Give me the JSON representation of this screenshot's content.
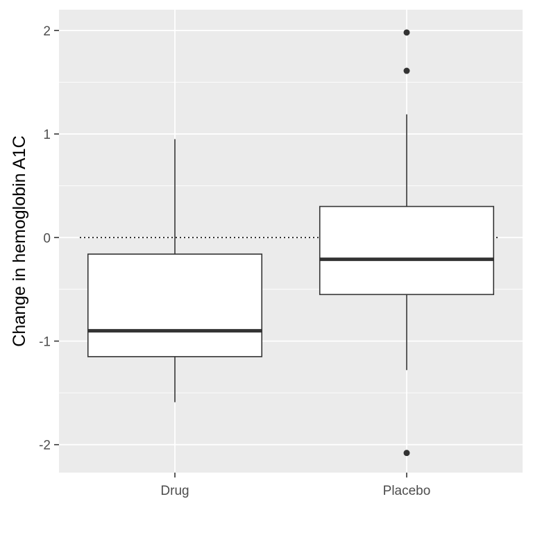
{
  "chart_data": {
    "type": "boxplot",
    "title": "",
    "xlabel": "",
    "ylabel": "Change in hemoglobin A1C",
    "categories": [
      "Drug",
      "Placebo"
    ],
    "ylim": [
      -2.27,
      2.2
    ],
    "y_ticks": [
      2,
      1,
      0,
      -1,
      -2
    ],
    "y_tick_labels": [
      "2",
      "1",
      "0",
      "-1",
      "-2"
    ],
    "grid": true,
    "reference_line": {
      "y": 0,
      "style": "dotted"
    },
    "boxes": [
      {
        "category": "Drug",
        "whisker_low": -1.59,
        "q1": -1.15,
        "median": -0.9,
        "q3": -0.16,
        "whisker_high": 0.95,
        "outliers": []
      },
      {
        "category": "Placebo",
        "whisker_low": -1.28,
        "q1": -0.55,
        "median": -0.21,
        "q3": 0.3,
        "whisker_high": 1.19,
        "outliers": [
          1.98,
          1.61,
          -2.08
        ]
      }
    ],
    "colors": {
      "panel": "#ebebeb",
      "grid": "#ffffff",
      "box_fill": "#ffffff",
      "box_line": "#333333",
      "tick_text": "#4d4d4d"
    }
  }
}
